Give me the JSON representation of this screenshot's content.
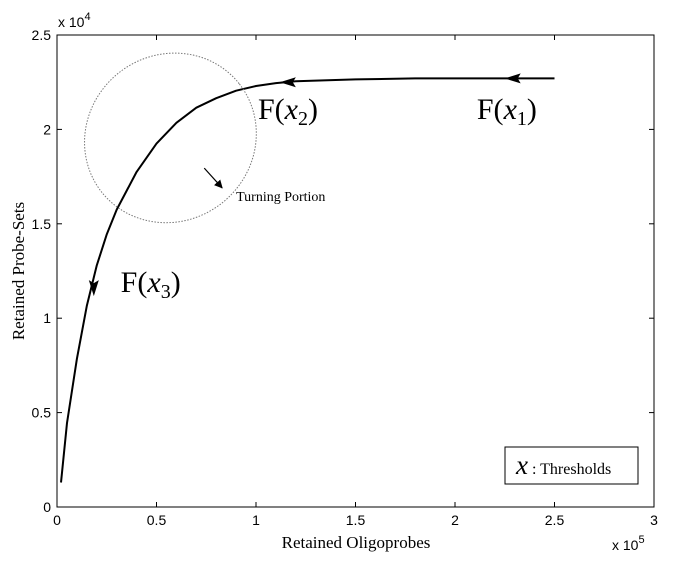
{
  "chart_data": {
    "type": "line",
    "xlabel": "Retained Oligoprobes",
    "ylabel": "Retained Probe-Sets",
    "x_multiplier": "x 10",
    "x_multiplier_exp": "5",
    "y_multiplier": "x 10",
    "y_multiplier_exp": "4",
    "xlim": [
      0,
      300000
    ],
    "ylim": [
      0,
      25000
    ],
    "x_ticks": [
      {
        "value": 0,
        "label": "0"
      },
      {
        "value": 50000,
        "label": "0.5"
      },
      {
        "value": 100000,
        "label": "1"
      },
      {
        "value": 150000,
        "label": "1.5"
      },
      {
        "value": 200000,
        "label": "2"
      },
      {
        "value": 250000,
        "label": "2.5"
      },
      {
        "value": 300000,
        "label": "3"
      }
    ],
    "y_ticks": [
      {
        "value": 0,
        "label": "0"
      },
      {
        "value": 5000,
        "label": "0.5"
      },
      {
        "value": 10000,
        "label": "1"
      },
      {
        "value": 15000,
        "label": "1.5"
      },
      {
        "value": 20000,
        "label": "2"
      },
      {
        "value": 25000,
        "label": "2.5"
      }
    ],
    "grid": false,
    "series": [
      {
        "x": [
          250000,
          220000,
          180000,
          150000,
          120000,
          110000,
          100000,
          90000,
          80000,
          70000,
          60000,
          50000,
          40000,
          30000,
          25000,
          20000,
          15000,
          10000,
          5000,
          2000
        ],
        "y": [
          22700,
          22700,
          22700,
          22650,
          22550,
          22450,
          22300,
          22050,
          21650,
          21150,
          20350,
          19250,
          17750,
          15750,
          14450,
          12800,
          10650,
          7850,
          4450,
          1300
        ]
      }
    ],
    "arrows": [
      {
        "x": 230000,
        "y": 22700,
        "direction": "left"
      },
      {
        "x": 117000,
        "y": 22500,
        "direction": "left"
      },
      {
        "x": 18500,
        "y": 11700,
        "direction": "down"
      }
    ],
    "labels": [
      {
        "func": "F(",
        "var": "x",
        "sub": "1",
        "close": ")",
        "x": 211000,
        "y": 20550
      },
      {
        "func": "F(",
        "var": "x",
        "sub": "2",
        "close": ")",
        "x": 101000,
        "y": 20550
      },
      {
        "func": "F(",
        "var": "x",
        "sub": "3",
        "close": ")",
        "x": 32000,
        "y": 11400
      }
    ],
    "turning_portion": {
      "label": "Turning Portion",
      "cx": 57000,
      "cy": 19550,
      "rx": 44000,
      "ry": 4400,
      "arrow_from": [
        74000,
        17950
      ],
      "arrow_to": [
        83000,
        16900
      ],
      "label_at": [
        90000,
        16200
      ]
    },
    "legend": {
      "position": "bottom-right",
      "symbol": "x",
      "text": " : Thresholds"
    }
  }
}
